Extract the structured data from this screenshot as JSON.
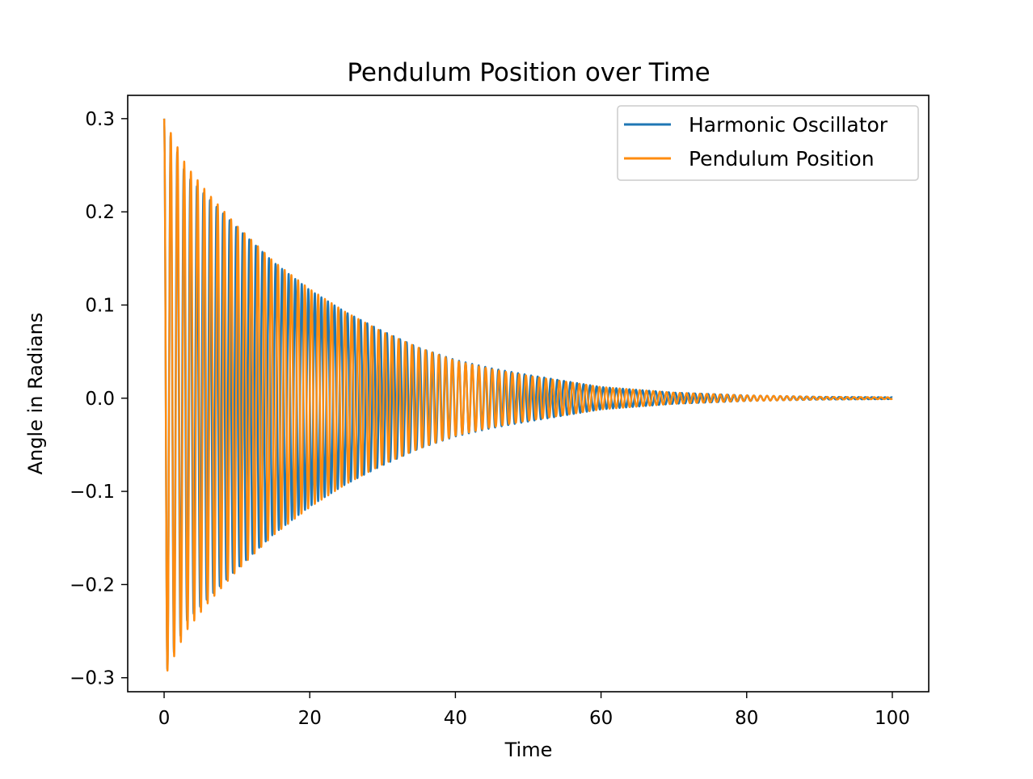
{
  "chart_data": {
    "type": "line",
    "title": "Pendulum Position over Time",
    "xlabel": "Time",
    "ylabel": "Angle in Radians",
    "xlim": [
      -5,
      105
    ],
    "ylim": [
      -0.315,
      0.325
    ],
    "x_ticks": [
      0,
      20,
      40,
      60,
      80,
      100
    ],
    "x_tick_labels": [
      "0",
      "20",
      "40",
      "60",
      "80",
      "100"
    ],
    "y_ticks": [
      -0.3,
      -0.2,
      -0.1,
      0.0,
      0.1,
      0.2,
      0.3
    ],
    "y_tick_labels": [
      "−0.3",
      "−0.2",
      "−0.1",
      "0.0",
      "0.1",
      "0.2",
      "0.3"
    ],
    "grid": false,
    "legend_position": "top-right",
    "series": [
      {
        "name": "Harmonic Oscillator",
        "color": "#1f77b4",
        "x_start": 0,
        "x_end": 100,
        "initial_value": 0.3,
        "period": 0.9,
        "envelope": {
          "x": [
            0,
            3,
            6,
            10,
            15,
            20,
            25,
            30,
            35,
            40,
            45,
            50,
            60,
            70,
            80,
            90,
            100
          ],
          "y": [
            0.3,
            0.24,
            0.215,
            0.183,
            0.146,
            0.116,
            0.092,
            0.072,
            0.054,
            0.041,
            0.032,
            0.025,
            0.012,
            0.006,
            0.003,
            0.0015,
            0.001
          ]
        }
      },
      {
        "name": "Pendulum Position",
        "color": "#ff8c0f",
        "x_start": 0,
        "x_end": 100,
        "initial_value": 0.3,
        "period": 0.92,
        "envelope": {
          "x": [
            0,
            3,
            6,
            10,
            15,
            20,
            25,
            30,
            35,
            40,
            45,
            50,
            60,
            70,
            80,
            90,
            100
          ],
          "y": [
            0.3,
            0.25,
            0.22,
            0.185,
            0.147,
            0.117,
            0.092,
            0.071,
            0.054,
            0.04,
            0.031,
            0.024,
            0.012,
            0.006,
            0.003,
            0.0015,
            0.001
          ]
        }
      }
    ]
  }
}
